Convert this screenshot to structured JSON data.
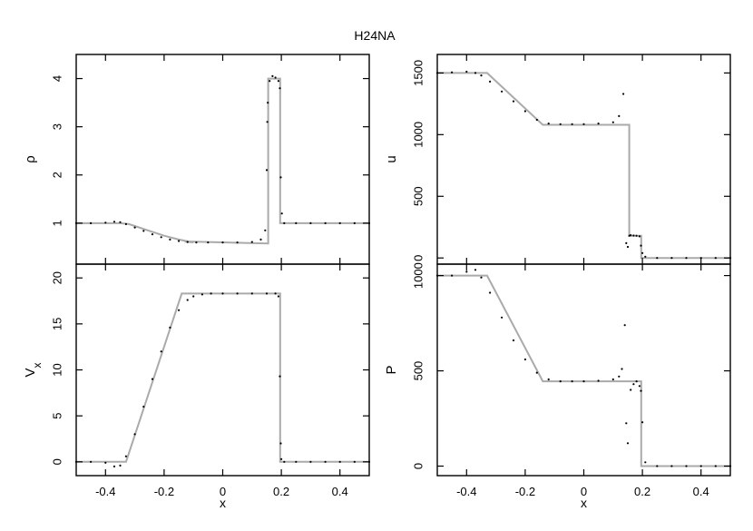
{
  "title": "H24NA",
  "colors": {
    "analytic": "#aaaaaa",
    "numeric": "#000000",
    "frame": "#000000"
  },
  "chart_data": [
    {
      "panel": "top-left",
      "type": "line",
      "ylabel": "ρ",
      "xlim": [
        -0.5,
        0.5
      ],
      "ylim": [
        0.15,
        4.5
      ],
      "xticks": [
        -0.4,
        -0.2,
        0,
        0.2,
        0.4
      ],
      "xtick_labels": [
        "-0.4",
        "-0.2",
        "0",
        "0.2",
        "0.4"
      ],
      "yticks": [
        1,
        2,
        3,
        4
      ],
      "ytick_labels": [
        "1",
        "2",
        "3",
        "4"
      ],
      "series": [
        {
          "style": "analytic-line",
          "x": [
            -0.5,
            -0.35,
            -0.32,
            -0.3,
            -0.25,
            -0.2,
            -0.15,
            -0.1,
            -0.13,
            0.155,
            0.155,
            0.196,
            0.196,
            0.5
          ],
          "y": [
            1.0,
            1.0,
            0.98,
            0.94,
            0.84,
            0.74,
            0.66,
            0.6,
            0.62,
            0.58,
            4.0,
            4.0,
            1.0,
            1.0
          ]
        },
        {
          "style": "numeric-points",
          "x": [
            -0.5,
            -0.45,
            -0.4,
            -0.37,
            -0.35,
            -0.33,
            -0.3,
            -0.27,
            -0.24,
            -0.21,
            -0.18,
            -0.15,
            -0.12,
            -0.09,
            -0.05,
            0.0,
            0.05,
            0.1,
            0.13,
            0.145,
            0.15,
            0.152,
            0.154,
            0.16,
            0.17,
            0.18,
            0.19,
            0.195,
            0.198,
            0.202,
            0.21,
            0.25,
            0.3,
            0.35,
            0.4,
            0.45,
            0.5
          ],
          "y": [
            1.0,
            1.0,
            1.01,
            1.03,
            1.02,
            0.98,
            0.91,
            0.84,
            0.77,
            0.71,
            0.66,
            0.63,
            0.61,
            0.6,
            0.6,
            0.6,
            0.6,
            0.61,
            0.66,
            0.85,
            2.1,
            3.1,
            3.5,
            3.95,
            4.05,
            4.02,
            3.95,
            3.8,
            1.95,
            1.2,
            1.0,
            1.0,
            1.0,
            1.0,
            1.0,
            1.0,
            1.0
          ]
        }
      ]
    },
    {
      "panel": "top-right",
      "type": "line",
      "ylabel": "u",
      "xlim": [
        -0.5,
        0.5
      ],
      "ylim": [
        -50,
        1650
      ],
      "xticks": [
        -0.4,
        -0.2,
        0,
        0.2,
        0.4
      ],
      "xtick_labels": [
        "-0.4",
        "-0.2",
        "0",
        "0.2",
        "0.4"
      ],
      "yticks": [
        0,
        500,
        1000,
        1500
      ],
      "ytick_labels": [
        "0",
        "500",
        "1000",
        "1500"
      ],
      "series": [
        {
          "style": "analytic-line",
          "x": [
            -0.5,
            -0.33,
            -0.14,
            0.155,
            0.155,
            0.196,
            0.196,
            0.5
          ],
          "y": [
            1500,
            1500,
            1080,
            1080,
            180,
            180,
            0,
            0
          ]
        },
        {
          "style": "numeric-points",
          "x": [
            -0.5,
            -0.45,
            -0.4,
            -0.37,
            -0.35,
            -0.32,
            -0.28,
            -0.24,
            -0.2,
            -0.16,
            -0.12,
            -0.08,
            -0.04,
            0.0,
            0.05,
            0.1,
            0.12,
            0.135,
            0.145,
            0.15,
            0.155,
            0.16,
            0.17,
            0.18,
            0.19,
            0.195,
            0.2,
            0.21,
            0.25,
            0.3,
            0.35,
            0.4,
            0.45,
            0.5
          ],
          "y": [
            1500,
            1505,
            1510,
            1500,
            1480,
            1430,
            1350,
            1270,
            1190,
            1120,
            1090,
            1085,
            1085,
            1085,
            1090,
            1100,
            1150,
            1330,
            120,
            90,
            180,
            185,
            182,
            180,
            175,
            100,
            40,
            10,
            0,
            0,
            0,
            0,
            0,
            0
          ]
        }
      ]
    },
    {
      "panel": "bottom-left",
      "type": "line",
      "ylabel": "Vx",
      "xlabel": "x",
      "xlim": [
        -0.5,
        0.5
      ],
      "ylim": [
        -1.5,
        21.5
      ],
      "xticks": [
        -0.4,
        -0.2,
        0,
        0.2,
        0.4
      ],
      "xtick_labels": [
        "-0.4",
        "-0.2",
        "0",
        "0.2",
        "0.4"
      ],
      "yticks": [
        0,
        5,
        10,
        15,
        20
      ],
      "ytick_labels": [
        "0",
        "5",
        "10",
        "15",
        "20"
      ],
      "series": [
        {
          "style": "analytic-line",
          "x": [
            -0.5,
            -0.33,
            -0.14,
            0.196,
            0.196,
            0.5
          ],
          "y": [
            0,
            0,
            18.3,
            18.3,
            0,
            0
          ]
        },
        {
          "style": "numeric-points",
          "x": [
            -0.5,
            -0.45,
            -0.4,
            -0.37,
            -0.35,
            -0.33,
            -0.3,
            -0.27,
            -0.24,
            -0.21,
            -0.18,
            -0.15,
            -0.12,
            -0.1,
            -0.07,
            -0.04,
            0.0,
            0.05,
            0.1,
            0.15,
            0.18,
            0.19,
            0.195,
            0.198,
            0.2,
            0.21,
            0.25,
            0.3,
            0.35,
            0.4,
            0.45,
            0.5
          ],
          "y": [
            0,
            0,
            -0.1,
            -0.5,
            -0.4,
            0.6,
            3.0,
            6.0,
            9.0,
            12.0,
            14.6,
            16.5,
            17.6,
            18.0,
            18.2,
            18.3,
            18.3,
            18.3,
            18.3,
            18.3,
            18.3,
            18.0,
            9.3,
            2.0,
            0.3,
            0,
            0,
            0,
            0,
            0,
            0,
            0
          ]
        }
      ]
    },
    {
      "panel": "bottom-right",
      "type": "line",
      "ylabel": "P",
      "xlabel": "x",
      "xlim": [
        -0.5,
        0.5
      ],
      "ylim": [
        -50,
        1060
      ],
      "xticks": [
        -0.4,
        -0.2,
        0,
        0.2,
        0.4
      ],
      "xtick_labels": [
        "-0.4",
        "-0.2",
        "0",
        "0.2",
        "0.4"
      ],
      "yticks": [
        0,
        500,
        1000
      ],
      "ytick_labels": [
        "0",
        "500",
        "1000"
      ],
      "series": [
        {
          "style": "analytic-line",
          "x": [
            -0.5,
            -0.33,
            -0.14,
            0.196,
            0.196,
            0.5
          ],
          "y": [
            1000,
            1000,
            445,
            445,
            0,
            0
          ]
        },
        {
          "style": "numeric-points",
          "x": [
            -0.5,
            -0.45,
            -0.4,
            -0.37,
            -0.35,
            -0.32,
            -0.28,
            -0.24,
            -0.2,
            -0.16,
            -0.12,
            -0.08,
            -0.04,
            0.0,
            0.05,
            0.1,
            0.12,
            0.13,
            0.14,
            0.145,
            0.15,
            0.16,
            0.17,
            0.18,
            0.19,
            0.195,
            0.2,
            0.21,
            0.25,
            0.3,
            0.35,
            0.4,
            0.45,
            0.5
          ],
          "y": [
            1000,
            1000,
            1020,
            1030,
            990,
            910,
            780,
            660,
            560,
            490,
            455,
            445,
            445,
            445,
            448,
            455,
            470,
            510,
            740,
            225,
            120,
            400,
            430,
            445,
            420,
            395,
            230,
            20,
            0,
            0,
            0,
            0,
            0,
            0
          ]
        }
      ]
    }
  ]
}
